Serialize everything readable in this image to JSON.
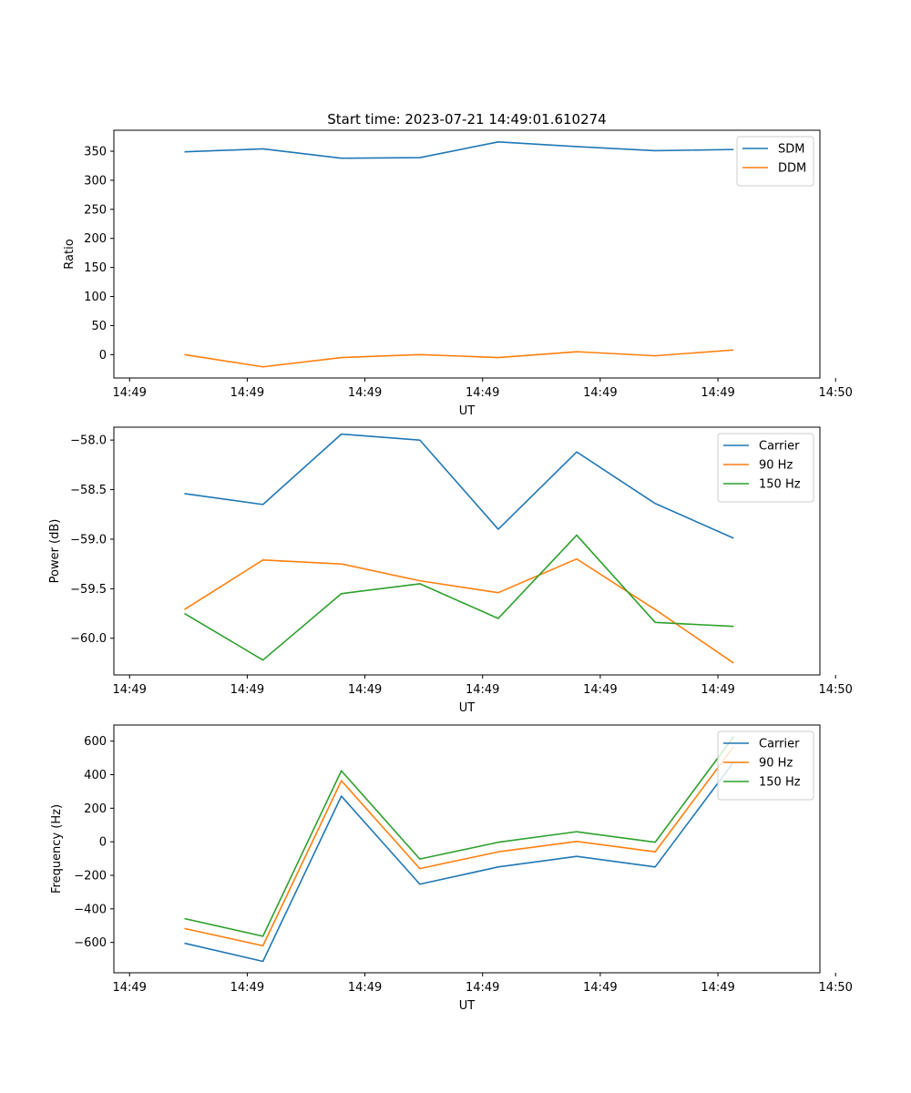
{
  "figure_title": "Start time: 2023-07-21 14:49:01.610274",
  "chart_data": [
    {
      "type": "line",
      "title": "Start time: 2023-07-21 14:49:01.610274",
      "xlabel": "UT",
      "ylabel": "Ratio",
      "xlim": [
        0,
        9
      ],
      "ylim": [
        -40.2,
        386.1
      ],
      "x_tick_values": [
        0.2,
        1.7,
        3.2,
        4.7,
        6.2,
        7.7,
        9.2
      ],
      "x_tick_labels": [
        "14:49",
        "14:49",
        "14:49",
        "14:49",
        "14:49",
        "14:49",
        "14:50"
      ],
      "y_ticks": [
        0,
        50,
        100,
        150,
        200,
        250,
        300,
        350
      ],
      "y_tick_labels": [
        "0",
        "50",
        "100",
        "150",
        "200",
        "250",
        "300",
        "350"
      ],
      "legend_location": "upper right",
      "x": [
        0.9,
        1.9,
        2.9,
        3.9,
        4.9,
        5.9,
        6.9,
        7.9
      ],
      "series": [
        {
          "name": "SDM",
          "color": "#1f77b4",
          "values": [
            349,
            354,
            338,
            339,
            366,
            358,
            351,
            353
          ]
        },
        {
          "name": "DDM",
          "color": "#ff7f0e",
          "values": [
            0,
            -21,
            -5,
            0,
            -5,
            5,
            -2,
            8
          ]
        }
      ]
    },
    {
      "type": "line",
      "title": "",
      "xlabel": "UT",
      "ylabel": "Power (dB)",
      "xlim": [
        0,
        9
      ],
      "ylim": [
        -60.37,
        -57.87
      ],
      "x_tick_values": [
        0.2,
        1.7,
        3.2,
        4.7,
        6.2,
        7.7,
        9.2
      ],
      "x_tick_labels": [
        "14:49",
        "14:49",
        "14:49",
        "14:49",
        "14:49",
        "14:49",
        "14:50"
      ],
      "y_ticks": [
        -60.0,
        -59.5,
        -59.0,
        -58.5,
        -58.0
      ],
      "y_tick_labels": [
        "−60.0",
        "−59.5",
        "−59.0",
        "−58.5",
        "−58.0"
      ],
      "legend_location": "upper right",
      "x": [
        0.9,
        1.9,
        2.9,
        3.9,
        4.9,
        5.9,
        6.9,
        7.9
      ],
      "series": [
        {
          "name": "Carrier",
          "color": "#1f77b4",
          "values": [
            -58.54,
            -58.65,
            -57.94,
            -58.0,
            -58.9,
            -58.12,
            -58.64,
            -58.99
          ]
        },
        {
          "name": "90 Hz",
          "color": "#ff7f0e",
          "values": [
            -59.71,
            -59.21,
            -59.25,
            -59.42,
            -59.54,
            -59.2,
            -59.71,
            -60.25
          ]
        },
        {
          "name": "150 Hz",
          "color": "#2ca02c",
          "values": [
            -59.75,
            -60.22,
            -59.55,
            -59.45,
            -59.8,
            -58.96,
            -59.84,
            -59.88
          ]
        }
      ]
    },
    {
      "type": "line",
      "title": "",
      "xlabel": "UT",
      "ylabel": "Frequency (Hz)",
      "xlim": [
        0,
        9
      ],
      "ylim": [
        -781,
        696
      ],
      "x_tick_values": [
        0.2,
        1.7,
        3.2,
        4.7,
        6.2,
        7.7,
        9.2
      ],
      "x_tick_labels": [
        "14:49",
        "14:49",
        "14:49",
        "14:49",
        "14:49",
        "14:49",
        "14:50"
      ],
      "y_ticks": [
        -600,
        -400,
        -200,
        0,
        200,
        400,
        600
      ],
      "y_tick_labels": [
        "−600",
        "−400",
        "−200",
        "0",
        "200",
        "400",
        "600"
      ],
      "legend_location": "upper right",
      "x": [
        0.9,
        1.9,
        2.9,
        3.9,
        4.9,
        5.9,
        6.9,
        7.9
      ],
      "series": [
        {
          "name": "Carrier",
          "color": "#1f77b4",
          "values": [
            -605,
            -713,
            272,
            -253,
            -150,
            -87,
            -150,
            475
          ]
        },
        {
          "name": "90 Hz",
          "color": "#ff7f0e",
          "values": [
            -517,
            -620,
            364,
            -160,
            -60,
            2,
            -60,
            567
          ]
        },
        {
          "name": "150 Hz",
          "color": "#2ca02c",
          "values": [
            -458,
            -563,
            423,
            -103,
            -3,
            60,
            -3,
            626
          ]
        }
      ]
    }
  ]
}
